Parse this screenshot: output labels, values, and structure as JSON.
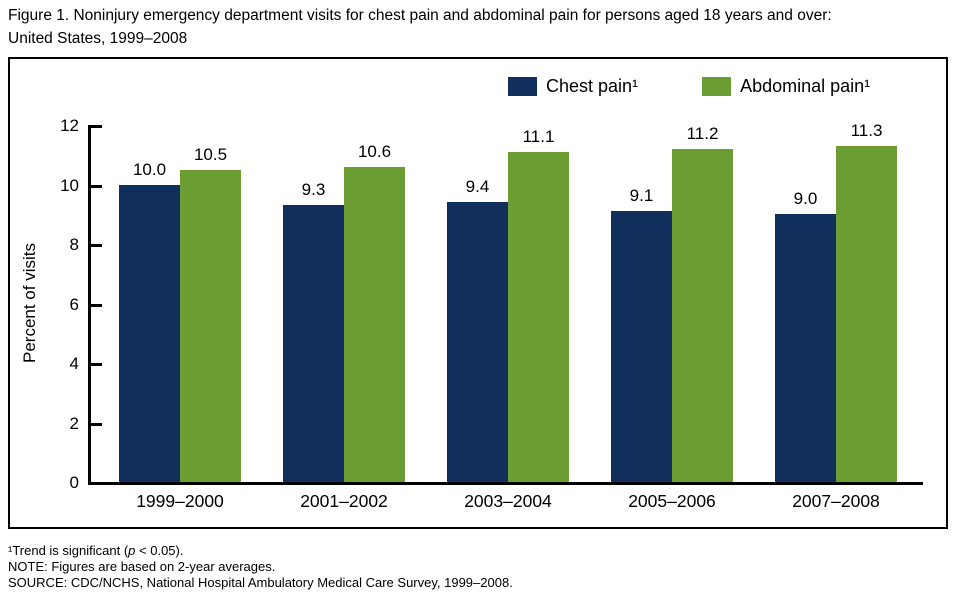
{
  "title": {
    "line1": "Figure 1. Noninjury emergency department visits for chest pain and abdominal pain for persons aged 18 years and over:",
    "line2": "United States, 1999–2008"
  },
  "chart_data": {
    "type": "bar",
    "categories": [
      "1999–2000",
      "2001–2002",
      "2003–2004",
      "2005–2006",
      "2007–2008"
    ],
    "series": [
      {
        "name": "Chest pain",
        "legend_label": "Chest pain¹",
        "color": "#112f5d",
        "values": [
          10.0,
          9.3,
          9.4,
          9.1,
          9.0
        ]
      },
      {
        "name": "Abdominal pain",
        "legend_label": "Abdominal pain¹",
        "color": "#6c9d33",
        "values": [
          10.5,
          10.6,
          11.1,
          11.2,
          11.3
        ]
      }
    ],
    "ylabel": "Percent of visits",
    "xlabel": "",
    "ylim": [
      0,
      12
    ],
    "yticks": [
      0,
      2,
      4,
      6,
      8,
      10,
      12
    ],
    "grid": false,
    "legend_position": "top-right-inside",
    "value_labels_decimals": 1
  },
  "footnotes": {
    "trend_prefix": "¹Trend is significant (",
    "trend_italic": "p",
    "trend_suffix": " < 0.05).",
    "note": "NOTE: Figures are based on 2-year averages.",
    "source": "SOURCE: CDC/NCHS, National Hospital Ambulatory Medical Care Survey, 1999–2008."
  }
}
